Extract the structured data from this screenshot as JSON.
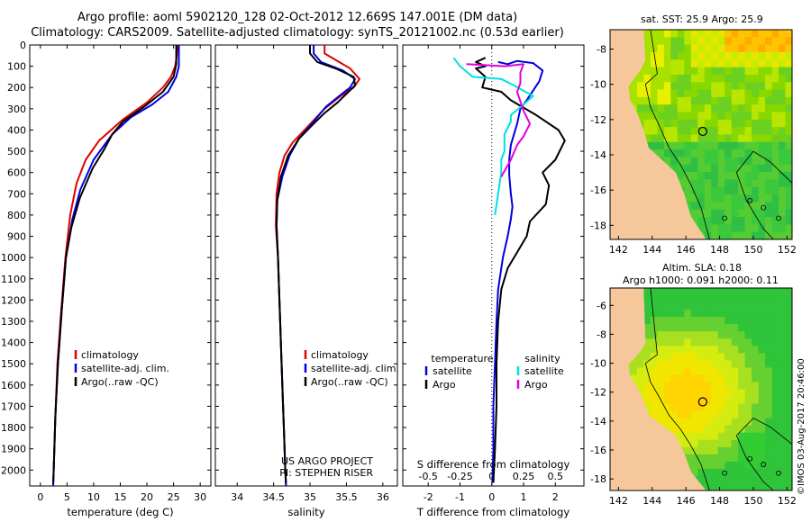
{
  "header": {
    "line1": "Argo profile: aoml 5902120_128 02-Oct-2012 12.669S 147.001E (DM data)",
    "line2": "Climatology: CARS2009. Satellite-adjusted climatology: synTS_20121002.nc (0.53d earlier)"
  },
  "credit": "©IMOS 03-Aug-2017 20:46:00",
  "colors": {
    "climatology": "#e00000",
    "satellite": "#0000e0",
    "argo": "#000000",
    "sal_sat": "#00e0e0",
    "sal_argo": "#e000e0",
    "land": "#f6c79a"
  },
  "depth_axis": {
    "ticks": [
      0,
      100,
      200,
      300,
      400,
      500,
      600,
      700,
      800,
      900,
      1000,
      1100,
      1200,
      1300,
      1400,
      1500,
      1600,
      1700,
      1800,
      1900,
      2000
    ]
  },
  "chart_data": [
    {
      "type": "line",
      "id": "temperature",
      "xlabel": "temperature (deg C)",
      "xlim": [
        -2,
        32
      ],
      "ylim": [
        0,
        2075
      ],
      "xticks": [
        0,
        5,
        10,
        15,
        20,
        25,
        30
      ],
      "legend": [
        "climatology",
        "satellite-adj. clim.",
        "Argo(..raw -QC)"
      ],
      "series": [
        {
          "name": "climatology",
          "color": "#e00000",
          "points": [
            [
              25.7,
              0
            ],
            [
              25.6,
              50
            ],
            [
              25.3,
              100
            ],
            [
              24.5,
              150
            ],
            [
              23,
              200
            ],
            [
              20,
              270
            ],
            [
              15.5,
              350
            ],
            [
              11,
              450
            ],
            [
              8.5,
              540
            ],
            [
              6.8,
              650
            ],
            [
              5.6,
              800
            ],
            [
              4.7,
              1000
            ],
            [
              3.9,
              1250
            ],
            [
              3.2,
              1500
            ],
            [
              2.8,
              1750
            ],
            [
              2.5,
              2000
            ],
            [
              2.4,
              2075
            ]
          ]
        },
        {
          "name": "satellite-adj. clim.",
          "color": "#0000e0",
          "points": [
            [
              26,
              0
            ],
            [
              26,
              50
            ],
            [
              26,
              100
            ],
            [
              25.5,
              150
            ],
            [
              24,
              220
            ],
            [
              21,
              280
            ],
            [
              17,
              340
            ],
            [
              13.5,
              420
            ],
            [
              10,
              540
            ],
            [
              7.5,
              680
            ],
            [
              6,
              820
            ],
            [
              4.8,
              1000
            ],
            [
              4,
              1250
            ],
            [
              3.3,
              1500
            ],
            [
              2.8,
              1750
            ],
            [
              2.5,
              2000
            ],
            [
              2.4,
              2075
            ]
          ]
        },
        {
          "name": "Argo(..raw -QC)",
          "color": "#000000",
          "points": [
            [
              25.5,
              0
            ],
            [
              25.5,
              60
            ],
            [
              25.5,
              90
            ],
            [
              25,
              150
            ],
            [
              23,
              220
            ],
            [
              19.5,
              290
            ],
            [
              15.5,
              360
            ],
            [
              13.5,
              420
            ],
            [
              12,
              490
            ],
            [
              9.8,
              580
            ],
            [
              7.4,
              720
            ],
            [
              5.8,
              860
            ],
            [
              4.8,
              1000
            ],
            [
              4,
              1250
            ],
            [
              3.3,
              1500
            ],
            [
              2.8,
              1750
            ],
            [
              2.5,
              2000
            ],
            [
              2.4,
              2060
            ]
          ]
        }
      ]
    },
    {
      "type": "line",
      "id": "salinity",
      "xlabel": "salinity",
      "xlim": [
        33.7,
        36.2
      ],
      "ylim": [
        0,
        2075
      ],
      "xticks": [
        34,
        34.5,
        35,
        35.5,
        36
      ],
      "legend": [
        "climatology",
        "satellite-adj. clim.",
        "Argo(..raw -QC)"
      ],
      "series": [
        {
          "name": "climatology",
          "color": "#e00000",
          "points": [
            [
              35.2,
              0
            ],
            [
              35.2,
              40
            ],
            [
              35.35,
              70
            ],
            [
              35.55,
              110
            ],
            [
              35.68,
              160
            ],
            [
              35.6,
              200
            ],
            [
              35.42,
              240
            ],
            [
              35.2,
              300
            ],
            [
              34.98,
              380
            ],
            [
              34.76,
              460
            ],
            [
              34.65,
              520
            ],
            [
              34.58,
              600
            ],
            [
              34.54,
              700
            ],
            [
              34.53,
              850
            ],
            [
              34.56,
              1000
            ],
            [
              34.58,
              1200
            ],
            [
              34.6,
              1400
            ],
            [
              34.62,
              1600
            ],
            [
              34.64,
              1800
            ],
            [
              34.66,
              2000
            ],
            [
              34.67,
              2075
            ]
          ]
        },
        {
          "name": "satellite-adj. clim.",
          "color": "#0000e0",
          "points": [
            [
              35.05,
              0
            ],
            [
              35.05,
              40
            ],
            [
              35.15,
              80
            ],
            [
              35.45,
              120
            ],
            [
              35.62,
              160
            ],
            [
              35.55,
              200
            ],
            [
              35.4,
              240
            ],
            [
              35.22,
              290
            ],
            [
              35.05,
              360
            ],
            [
              34.85,
              440
            ],
            [
              34.72,
              520
            ],
            [
              34.62,
              620
            ],
            [
              34.55,
              730
            ],
            [
              34.54,
              850
            ],
            [
              34.56,
              1000
            ],
            [
              34.58,
              1200
            ],
            [
              34.6,
              1400
            ],
            [
              34.62,
              1600
            ],
            [
              34.64,
              1800
            ],
            [
              34.66,
              2000
            ],
            [
              34.67,
              2075
            ]
          ]
        },
        {
          "name": "Argo(..raw -QC)",
          "color": "#000000",
          "points": [
            [
              35.0,
              0
            ],
            [
              35.0,
              40
            ],
            [
              35.1,
              80
            ],
            [
              35.35,
              110
            ],
            [
              35.6,
              150
            ],
            [
              35.62,
              190
            ],
            [
              35.5,
              230
            ],
            [
              35.38,
              270
            ],
            [
              35.2,
              320
            ],
            [
              35.05,
              370
            ],
            [
              34.85,
              440
            ],
            [
              34.7,
              520
            ],
            [
              34.6,
              620
            ],
            [
              34.55,
              730
            ],
            [
              34.54,
              850
            ],
            [
              34.56,
              1000
            ],
            [
              34.58,
              1200
            ],
            [
              34.6,
              1400
            ],
            [
              34.62,
              1600
            ],
            [
              34.64,
              1800
            ],
            [
              34.66,
              2000
            ],
            [
              34.67,
              2060
            ]
          ]
        }
      ],
      "notes": [
        "US ARGO PROJECT",
        "PI: STEPHEN RISER"
      ]
    },
    {
      "type": "line",
      "id": "difference",
      "xlabel": "T difference from climatology",
      "x2label": "S difference from climatology",
      "xlim": [
        -2.8,
        2.9
      ],
      "ylim": [
        0,
        2075
      ],
      "xticks": [
        -2,
        -1,
        0,
        1,
        2
      ],
      "x2ticks": [
        {
          "label": "-0.5",
          "x": -2
        },
        {
          "label": "-0.25",
          "x": -1
        },
        {
          "label": "0",
          "x": 0
        },
        {
          "label": "0.25",
          "x": 1
        },
        {
          "label": "0.5",
          "x": 2
        }
      ],
      "legend_headers": [
        "temperature",
        "salinity"
      ],
      "legend_temp": [
        "satellite",
        "Argo"
      ],
      "legend_sal": [
        "satellite",
        "Argo"
      ],
      "series": [
        {
          "name": "T satellite",
          "color": "#0000e0",
          "points": [
            [
              0.2,
              80
            ],
            [
              0.5,
              90
            ],
            [
              0.8,
              75
            ],
            [
              1.3,
              85
            ],
            [
              1.6,
              120
            ],
            [
              1.5,
              170
            ],
            [
              1.1,
              260
            ],
            [
              0.9,
              300
            ],
            [
              0.8,
              370
            ],
            [
              0.7,
              420
            ],
            [
              0.6,
              470
            ],
            [
              0.55,
              540
            ],
            [
              0.55,
              610
            ],
            [
              0.6,
              700
            ],
            [
              0.65,
              760
            ],
            [
              0.6,
              820
            ],
            [
              0.5,
              900
            ],
            [
              0.35,
              1000
            ],
            [
              0.2,
              1150
            ],
            [
              0.15,
              1300
            ],
            [
              0.1,
              1500
            ],
            [
              0.05,
              1700
            ],
            [
              0.05,
              1900
            ],
            [
              0.02,
              2060
            ]
          ]
        },
        {
          "name": "T Argo",
          "color": "#000000",
          "points": [
            [
              -0.2,
              60
            ],
            [
              -0.5,
              80
            ],
            [
              -0.2,
              100
            ],
            [
              -0.5,
              110
            ],
            [
              -0.2,
              150
            ],
            [
              -0.3,
              200
            ],
            [
              0.3,
              220
            ],
            [
              0.6,
              260
            ],
            [
              1.4,
              330
            ],
            [
              2.1,
              400
            ],
            [
              2.3,
              450
            ],
            [
              2.0,
              540
            ],
            [
              1.6,
              600
            ],
            [
              1.8,
              660
            ],
            [
              1.7,
              750
            ],
            [
              1.2,
              830
            ],
            [
              1.1,
              900
            ],
            [
              0.9,
              950
            ],
            [
              0.5,
              1050
            ],
            [
              0.3,
              1150
            ],
            [
              0.2,
              1300
            ],
            [
              0.15,
              1500
            ],
            [
              0.15,
              1700
            ],
            [
              0.1,
              1900
            ],
            [
              0.05,
              2060
            ]
          ]
        },
        {
          "name": "S satellite",
          "color": "#00e0e0",
          "points": [
            [
              -1.2,
              60
            ],
            [
              -1.0,
              100
            ],
            [
              -0.6,
              150
            ],
            [
              0.3,
              160
            ],
            [
              0.7,
              190
            ],
            [
              1.3,
              240
            ],
            [
              1.0,
              280
            ],
            [
              0.6,
              330
            ],
            [
              0.6,
              360
            ],
            [
              0.4,
              420
            ],
            [
              0.4,
              500
            ],
            [
              0.3,
              540
            ],
            [
              0.3,
              600
            ],
            [
              0.2,
              700
            ],
            [
              0.1,
              800
            ]
          ]
        },
        {
          "name": "S Argo",
          "color": "#e000e0",
          "points": [
            [
              -0.8,
              90
            ],
            [
              -0.2,
              95
            ],
            [
              0.4,
              100
            ],
            [
              1.0,
              90
            ],
            [
              0.9,
              130
            ],
            [
              0.9,
              180
            ],
            [
              0.8,
              220
            ],
            [
              1.0,
              310
            ],
            [
              1.2,
              370
            ],
            [
              1.0,
              430
            ],
            [
              0.8,
              470
            ],
            [
              0.6,
              540
            ],
            [
              0.3,
              620
            ]
          ]
        }
      ]
    },
    {
      "type": "heatmap",
      "id": "sst_map",
      "title": "sat. SST: 25.9 Argo: 25.9",
      "xticks": [
        142,
        144,
        146,
        148,
        150,
        152
      ],
      "yticks": [
        -8,
        -10,
        -12,
        -14,
        -16,
        -18
      ],
      "xlim": [
        141.5,
        152.3
      ],
      "ylim": [
        -18.8,
        -6.9
      ],
      "argo_position": [
        147.0,
        -12.67
      ]
    },
    {
      "type": "heatmap",
      "id": "sla_map",
      "title_lines": [
        "Altim. SLA: 0.18",
        "Argo h1000: 0.091 h2000: 0.11"
      ],
      "xticks": [
        142,
        144,
        146,
        148,
        150,
        152
      ],
      "yticks": [
        -6,
        -8,
        -10,
        -12,
        -14,
        -16,
        -18
      ],
      "xlim": [
        141.5,
        152.3
      ],
      "ylim": [
        -18.8,
        -4.8
      ],
      "argo_position": [
        147.0,
        -12.67
      ]
    }
  ]
}
